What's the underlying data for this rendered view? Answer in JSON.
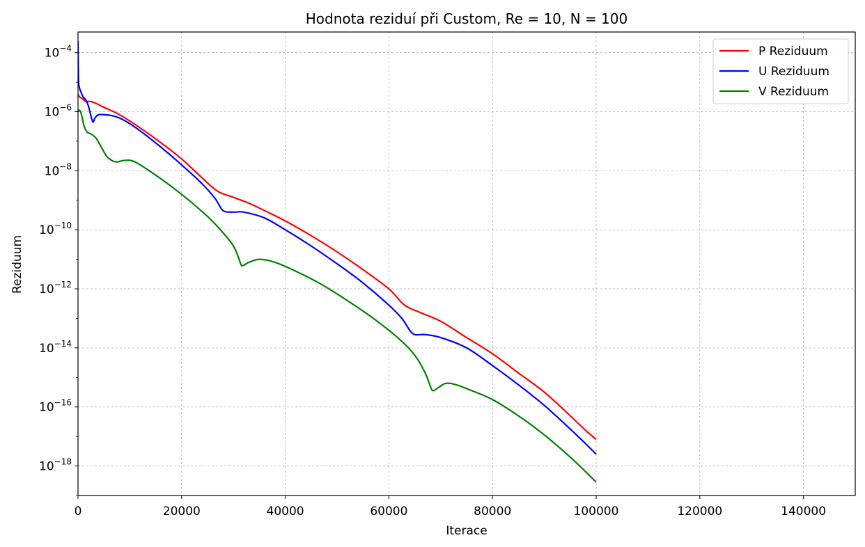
{
  "chart_data": {
    "type": "line",
    "title": "Hodnota reziduí při Custom, Re = 10, N = 100",
    "xlabel": "Iterace",
    "ylabel": "Reziduum",
    "xlim": [
      0,
      150000
    ],
    "ylim_log10": [
      -19,
      -3.3
    ],
    "yscale": "log",
    "grid": true,
    "legend_position": "top-right",
    "x_ticks": [
      0,
      20000,
      40000,
      60000,
      80000,
      100000,
      120000,
      140000
    ],
    "x_tick_labels": [
      "0",
      "20000",
      "40000",
      "60000",
      "80000",
      "100000",
      "120000",
      "140000"
    ],
    "y_ticks_exp": [
      -4,
      -6,
      -8,
      -10,
      -12,
      -14,
      -16,
      -18
    ],
    "y_tick_base": "10",
    "y_tick_exps": [
      "−4",
      "−6",
      "−8",
      "−10",
      "−12",
      "−14",
      "−16",
      "−18"
    ],
    "series": [
      {
        "name": "P Reziduum",
        "color": "#ff0000",
        "x": [
          0,
          300,
          800,
          1500,
          2000,
          3000,
          5000,
          8000,
          12000,
          16000,
          20000,
          24000,
          27000,
          30000,
          33000,
          36000,
          40000,
          45000,
          50000,
          55000,
          60000,
          63000,
          66000,
          70000,
          75000,
          80000,
          85000,
          90000,
          95000,
          98000,
          100000
        ],
        "log10y": [
          -5.4,
          -5.5,
          -5.55,
          -5.65,
          -5.65,
          -5.68,
          -5.85,
          -6.1,
          -6.55,
          -7.05,
          -7.6,
          -8.25,
          -8.7,
          -8.9,
          -9.1,
          -9.35,
          -9.7,
          -10.2,
          -10.75,
          -11.35,
          -12.0,
          -12.55,
          -12.8,
          -13.1,
          -13.65,
          -14.2,
          -14.85,
          -15.5,
          -16.3,
          -16.8,
          -17.1
        ]
      },
      {
        "name": "U Reziduum",
        "color": "#0000ff",
        "x": [
          0,
          100,
          300,
          600,
          1000,
          1500,
          2000,
          2500,
          2900,
          3300,
          4000,
          5000,
          7000,
          9000,
          12000,
          16000,
          20000,
          24000,
          26500,
          28000,
          30000,
          32000,
          36000,
          40000,
          45000,
          50000,
          55000,
          60000,
          62500,
          64000,
          65000,
          67000,
          70000,
          75000,
          80000,
          85000,
          90000,
          95000,
          98000,
          100000
        ],
        "log10y": [
          -3.6,
          -4.9,
          -5.2,
          -5.35,
          -5.5,
          -5.6,
          -5.8,
          -6.15,
          -6.35,
          -6.2,
          -6.1,
          -6.1,
          -6.15,
          -6.3,
          -6.65,
          -7.2,
          -7.8,
          -8.45,
          -8.95,
          -9.35,
          -9.4,
          -9.4,
          -9.6,
          -10.0,
          -10.55,
          -11.15,
          -11.8,
          -12.55,
          -13.0,
          -13.4,
          -13.55,
          -13.55,
          -13.65,
          -14.0,
          -14.6,
          -15.25,
          -15.95,
          -16.75,
          -17.25,
          -17.6
        ]
      },
      {
        "name": "V Reziduum",
        "color": "#008000",
        "x": [
          0,
          200,
          500,
          800,
          1200,
          1800,
          2500,
          3500,
          4500,
          5500,
          6500,
          7500,
          9000,
          11000,
          15000,
          20000,
          25000,
          28000,
          30000,
          31000,
          31500,
          32000,
          33000,
          35000,
          38000,
          42000,
          47000,
          52000,
          57000,
          62000,
          65000,
          67000,
          68000,
          68500,
          69500,
          71000,
          73000,
          76000,
          80000,
          85000,
          90000,
          95000,
          98000,
          100000
        ],
        "log10y": [
          -6.0,
          -5.95,
          -6.0,
          -6.2,
          -6.5,
          -6.7,
          -6.75,
          -6.9,
          -7.2,
          -7.5,
          -7.65,
          -7.7,
          -7.65,
          -7.7,
          -8.15,
          -8.8,
          -9.55,
          -10.1,
          -10.55,
          -10.95,
          -11.2,
          -11.2,
          -11.1,
          -11.0,
          -11.1,
          -11.4,
          -11.85,
          -12.4,
          -13.0,
          -13.7,
          -14.25,
          -14.85,
          -15.3,
          -15.45,
          -15.35,
          -15.2,
          -15.25,
          -15.45,
          -15.75,
          -16.3,
          -16.95,
          -17.7,
          -18.2,
          -18.55
        ]
      }
    ]
  }
}
